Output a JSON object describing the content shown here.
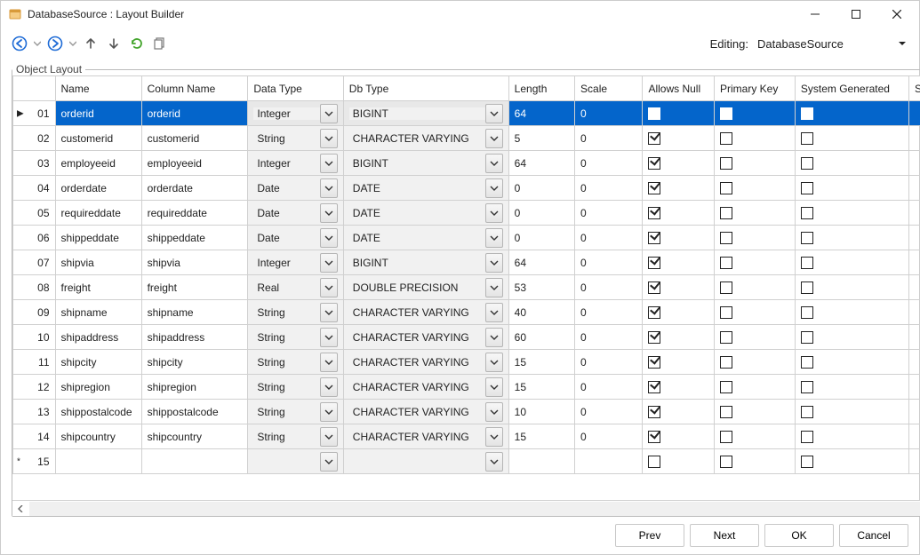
{
  "window": {
    "title": "DatabaseSource : Layout Builder",
    "icon_color_a": "#d89a3a",
    "icon_color_b": "#f5cc84"
  },
  "toolbar": {
    "back_color": "#1e6bd6",
    "forward_color": "#1e6bd6",
    "up_color": "#555555",
    "down_color": "#555555",
    "refresh_color": "#45a52e",
    "copy_color": "#777777"
  },
  "editing": {
    "label": "Editing:",
    "value": "DatabaseSource"
  },
  "legend": "Object Layout",
  "columns": {
    "gutter": "",
    "name": "Name",
    "column_name": "Column Name",
    "data_type": "Data Type",
    "db_type": "Db Type",
    "length": "Length",
    "scale": "Scale",
    "allows_null": "Allows Null",
    "primary_key": "Primary Key",
    "system_generated": "System Generated",
    "tail": "S"
  },
  "rows": [
    {
      "num": "01",
      "marker": "▶",
      "name": "orderid",
      "col": "orderid",
      "dtype": "Integer",
      "dbtype": "BIGINT",
      "len": "64",
      "scale": "0",
      "allows": false,
      "pk": true,
      "sys": true,
      "selected": true
    },
    {
      "num": "02",
      "marker": "",
      "name": "customerid",
      "col": "customerid",
      "dtype": "String",
      "dbtype": "CHARACTER VARYING",
      "len": "5",
      "scale": "0",
      "allows": true,
      "pk": false,
      "sys": false
    },
    {
      "num": "03",
      "marker": "",
      "name": "employeeid",
      "col": "employeeid",
      "dtype": "Integer",
      "dbtype": "BIGINT",
      "len": "64",
      "scale": "0",
      "allows": true,
      "pk": false,
      "sys": false
    },
    {
      "num": "04",
      "marker": "",
      "name": "orderdate",
      "col": "orderdate",
      "dtype": "Date",
      "dbtype": "DATE",
      "len": "0",
      "scale": "0",
      "allows": true,
      "pk": false,
      "sys": false
    },
    {
      "num": "05",
      "marker": "",
      "name": "requireddate",
      "col": "requireddate",
      "dtype": "Date",
      "dbtype": "DATE",
      "len": "0",
      "scale": "0",
      "allows": true,
      "pk": false,
      "sys": false
    },
    {
      "num": "06",
      "marker": "",
      "name": "shippeddate",
      "col": "shippeddate",
      "dtype": "Date",
      "dbtype": "DATE",
      "len": "0",
      "scale": "0",
      "allows": true,
      "pk": false,
      "sys": false
    },
    {
      "num": "07",
      "marker": "",
      "name": "shipvia",
      "col": "shipvia",
      "dtype": "Integer",
      "dbtype": "BIGINT",
      "len": "64",
      "scale": "0",
      "allows": true,
      "pk": false,
      "sys": false
    },
    {
      "num": "08",
      "marker": "",
      "name": "freight",
      "col": "freight",
      "dtype": "Real",
      "dbtype": "DOUBLE PRECISION",
      "len": "53",
      "scale": "0",
      "allows": true,
      "pk": false,
      "sys": false
    },
    {
      "num": "09",
      "marker": "",
      "name": "shipname",
      "col": "shipname",
      "dtype": "String",
      "dbtype": "CHARACTER VARYING",
      "len": "40",
      "scale": "0",
      "allows": true,
      "pk": false,
      "sys": false
    },
    {
      "num": "10",
      "marker": "",
      "name": "shipaddress",
      "col": "shipaddress",
      "dtype": "String",
      "dbtype": "CHARACTER VARYING",
      "len": "60",
      "scale": "0",
      "allows": true,
      "pk": false,
      "sys": false
    },
    {
      "num": "11",
      "marker": "",
      "name": "shipcity",
      "col": "shipcity",
      "dtype": "String",
      "dbtype": "CHARACTER VARYING",
      "len": "15",
      "scale": "0",
      "allows": true,
      "pk": false,
      "sys": false
    },
    {
      "num": "12",
      "marker": "",
      "name": "shipregion",
      "col": "shipregion",
      "dtype": "String",
      "dbtype": "CHARACTER VARYING",
      "len": "15",
      "scale": "0",
      "allows": true,
      "pk": false,
      "sys": false
    },
    {
      "num": "13",
      "marker": "",
      "name": "shippostalcode",
      "col": "shippostalcode",
      "dtype": "String",
      "dbtype": "CHARACTER VARYING",
      "len": "10",
      "scale": "0",
      "allows": true,
      "pk": false,
      "sys": false
    },
    {
      "num": "14",
      "marker": "",
      "name": "shipcountry",
      "col": "shipcountry",
      "dtype": "String",
      "dbtype": "CHARACTER VARYING",
      "len": "15",
      "scale": "0",
      "allows": true,
      "pk": false,
      "sys": false
    },
    {
      "num": "15",
      "marker": "*",
      "name": "",
      "col": "",
      "dtype": "",
      "dbtype": "",
      "len": "",
      "scale": "",
      "allows": false,
      "pk": false,
      "sys": false,
      "newrow": true
    }
  ],
  "footer": {
    "prev": "Prev",
    "next": "Next",
    "ok": "OK",
    "cancel": "Cancel"
  }
}
